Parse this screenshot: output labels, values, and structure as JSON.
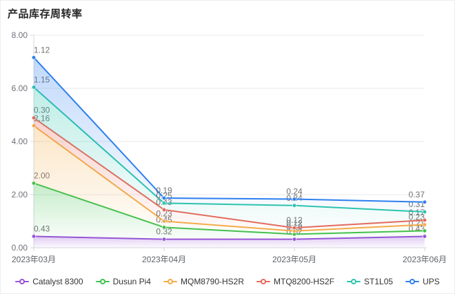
{
  "chart_data": {
    "type": "area",
    "stacked": true,
    "title": "产品库存周转率",
    "categories": [
      "2023年03月",
      "2023年04月",
      "2023年05月",
      "2023年06月"
    ],
    "series": [
      {
        "name": "Catalyst 8300",
        "color": "#9853d8",
        "values": [
          0.43,
          0.32,
          0.32,
          0.43
        ]
      },
      {
        "name": "Dusun Pi4",
        "color": "#3fc14e",
        "values": [
          2.0,
          0.45,
          0.19,
          0.21
        ]
      },
      {
        "name": "MQM8790-HS2R",
        "color": "#f2ad49",
        "values": [
          2.16,
          0.23,
          0.12,
          0.23
        ]
      },
      {
        "name": "MTQ8200-HS2F",
        "color": "#e56a5b",
        "values": [
          0.3,
          0.43,
          0.12,
          0.17
        ]
      },
      {
        "name": "ST1L05",
        "color": "#2cc4ae",
        "values": [
          1.15,
          0.25,
          0.84,
          0.31
        ]
      },
      {
        "name": "UPS",
        "color": "#2e7ff0",
        "values": [
          1.12,
          0.19,
          0.24,
          0.37
        ]
      }
    ],
    "ylim": [
      0,
      8
    ],
    "y_ticks": [
      "0.00",
      "2.00",
      "4.00",
      "6.00",
      "8.00"
    ],
    "data_labels": "each point, 2 decimals",
    "grid": true,
    "legend_position": "bottom",
    "axis_label_color": "#6e7079",
    "data_label_color": "#707070",
    "grid_line_color": "#e9e9e9",
    "axis_line_color": "#d4d7dc"
  }
}
